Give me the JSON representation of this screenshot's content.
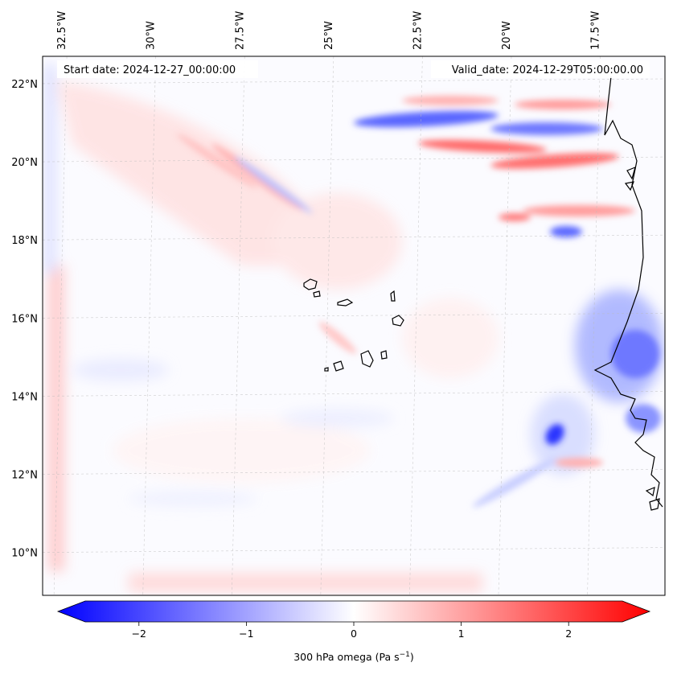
{
  "map": {
    "start_date_label": "Start date: 2024-12-27_00:00:00",
    "valid_date_label": "Valid_date: 2024-12-29T05:00:00.00",
    "lon_labels": [
      "32.5°W",
      "30°W",
      "27.5°W",
      "25°W",
      "22.5°W",
      "20°W",
      "17.5°W"
    ],
    "lat_labels": [
      "22°N",
      "20°N",
      "18°N",
      "16°N",
      "14°N",
      "12°N",
      "10°N"
    ],
    "lon_values": [
      -32.5,
      -30,
      -27.5,
      -25,
      -22.5,
      -20,
      -17.5
    ],
    "lat_values": [
      22,
      20,
      18,
      16,
      14,
      12,
      10
    ],
    "extent": {
      "lon_min": -33.0,
      "lon_max": -15.5,
      "lat_min": 8.9,
      "lat_max": 22.7
    }
  },
  "colorbar": {
    "tick_labels": [
      "−2",
      "−1",
      "0",
      "1",
      "2"
    ],
    "tick_values": [
      -2,
      -1,
      0,
      1,
      2
    ],
    "range": [
      -2.5,
      2.5
    ],
    "label_main": "300 hPa omega (Pa s",
    "label_sup": "−1",
    "label_end": ")",
    "colors": {
      "negative": "#0000ff",
      "zero": "#ffffff",
      "positive": "#ff0000"
    }
  }
}
